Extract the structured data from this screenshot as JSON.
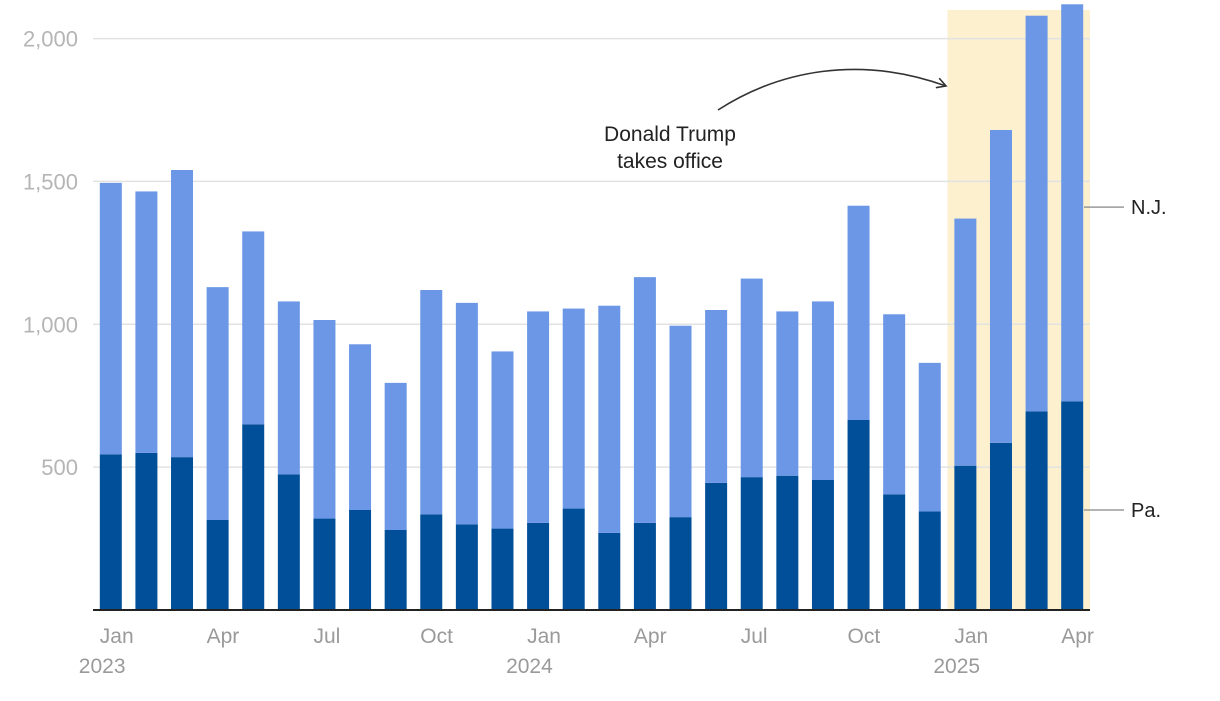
{
  "chart_data": {
    "type": "bar",
    "stacked": true,
    "categories": [
      "2023-01",
      "2023-02",
      "2023-03",
      "2023-04",
      "2023-05",
      "2023-06",
      "2023-07",
      "2023-08",
      "2023-09",
      "2023-10",
      "2023-11",
      "2023-12",
      "2024-01",
      "2024-02",
      "2024-03",
      "2024-04",
      "2024-05",
      "2024-06",
      "2024-07",
      "2024-08",
      "2024-09",
      "2024-10",
      "2024-11",
      "2024-12",
      "2025-01",
      "2025-02",
      "2025-03",
      "2025-04"
    ],
    "series": [
      {
        "name": "Pa.",
        "color": "#004f98",
        "values": [
          545,
          550,
          535,
          315,
          650,
          475,
          320,
          350,
          280,
          335,
          300,
          285,
          305,
          355,
          270,
          305,
          325,
          445,
          465,
          470,
          455,
          665,
          405,
          345,
          505,
          585,
          695,
          730
        ]
      },
      {
        "name": "N.J.",
        "color": "#6b97e6",
        "values": [
          950,
          915,
          1005,
          815,
          675,
          605,
          695,
          580,
          515,
          785,
          775,
          620,
          740,
          700,
          795,
          860,
          670,
          605,
          695,
          575,
          625,
          750,
          630,
          520,
          865,
          1095,
          1385,
          1390
        ]
      }
    ],
    "ylim": [
      0,
      2100
    ],
    "yticks": [
      {
        "value": 2000,
        "label": "2,000"
      },
      {
        "value": 1500,
        "label": "1,500"
      },
      {
        "value": 1000,
        "label": "1,000"
      },
      {
        "value": 500,
        "label": "500"
      }
    ],
    "xticks": [
      {
        "index": 0,
        "label": "Jan"
      },
      {
        "index": 3,
        "label": "Apr"
      },
      {
        "index": 6,
        "label": "Jul"
      },
      {
        "index": 9,
        "label": "Oct"
      },
      {
        "index": 12,
        "label": "Jan"
      },
      {
        "index": 15,
        "label": "Apr"
      },
      {
        "index": 18,
        "label": "Jul"
      },
      {
        "index": 21,
        "label": "Oct"
      },
      {
        "index": 24,
        "label": "Jan"
      },
      {
        "index": 27,
        "label": "Apr"
      }
    ],
    "year_labels": [
      {
        "index": 0,
        "label": "2023"
      },
      {
        "index": 12,
        "label": "2024"
      },
      {
        "index": 24,
        "label": "2025"
      }
    ],
    "highlight": {
      "from_index": 24,
      "to_index": 27,
      "color": "#fcf0cf"
    },
    "annotation": {
      "lines": [
        "Donald Trump",
        "takes office"
      ],
      "points_to_index": 24
    },
    "series_labels": [
      {
        "series": "N.J.",
        "label": "N.J."
      },
      {
        "series": "Pa.",
        "label": "Pa."
      }
    ],
    "grid": true
  }
}
